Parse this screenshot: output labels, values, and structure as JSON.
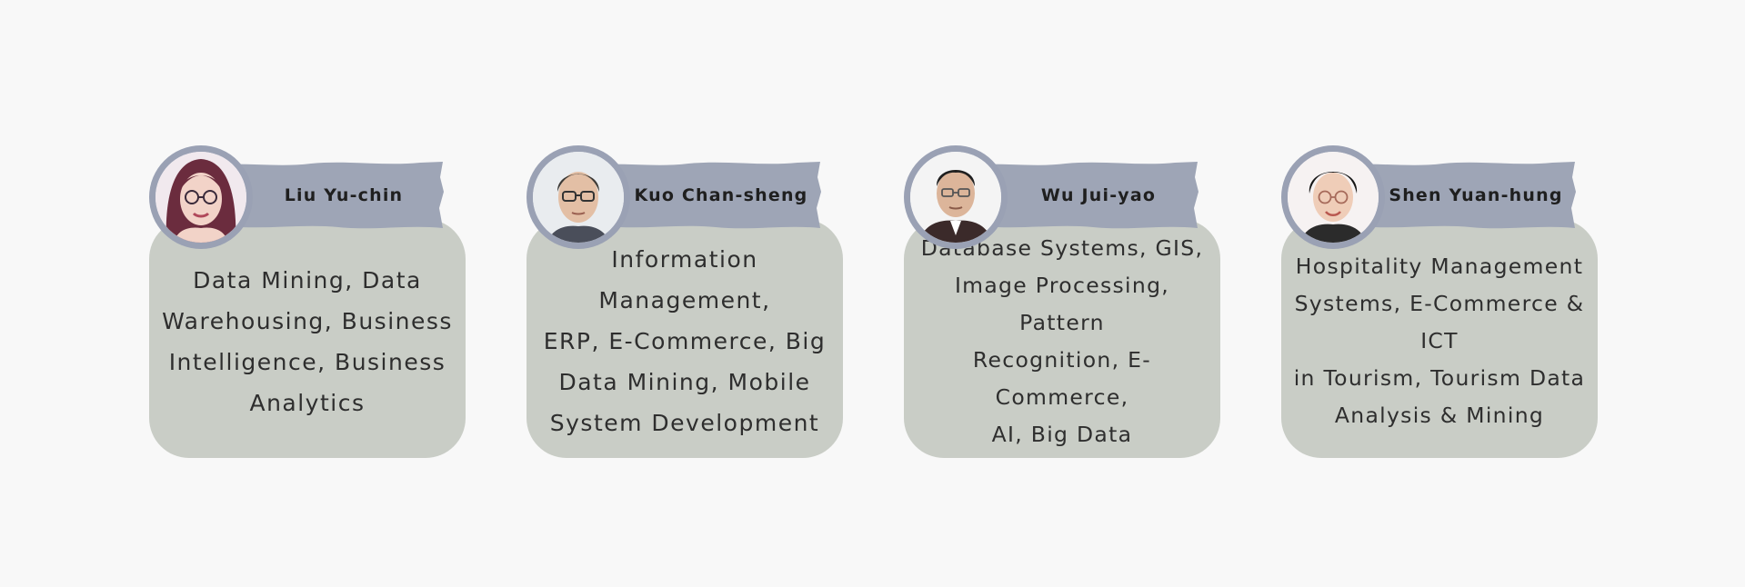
{
  "colors": {
    "background": "#f8f8f8",
    "card": "#c9cdc6",
    "banner": "#9ea5b6",
    "avatar_ring": "#9aa1b4",
    "text": "#2e2e2e"
  },
  "team": [
    {
      "name": "Liu Yu-chin",
      "avatar": "portrait-icon",
      "expertise_lines": [
        "Data Mining, Data",
        "Warehousing, Business",
        "Intelligence, Business",
        "Analytics"
      ]
    },
    {
      "name": "Kuo Chan-sheng",
      "avatar": "portrait-icon",
      "expertise_lines": [
        "Information Management,",
        "ERP, E-Commerce, Big",
        "Data Mining, Mobile",
        "System Development"
      ]
    },
    {
      "name": "Wu Jui-yao",
      "avatar": "portrait-icon",
      "expertise_lines": [
        "Database Systems, GIS,",
        "Image Processing, Pattern",
        "Recognition, E-Commerce,",
        "AI, Big Data"
      ]
    },
    {
      "name": "Shen Yuan-hung",
      "avatar": "portrait-icon",
      "expertise_lines": [
        "Hospitality Management",
        "Systems, E-Commerce & ICT",
        "in Tourism, Tourism Data",
        "Analysis & Mining"
      ]
    }
  ]
}
